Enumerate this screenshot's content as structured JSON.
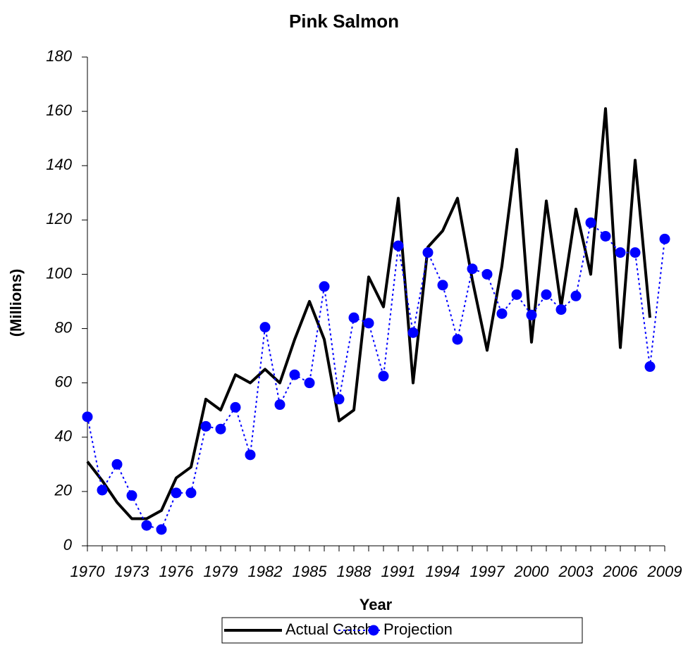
{
  "chart_data": {
    "type": "line",
    "title": "Pink Salmon",
    "xlabel": "Year",
    "ylabel": "(Millions)",
    "x": [
      1970,
      1971,
      1972,
      1973,
      1974,
      1975,
      1976,
      1977,
      1978,
      1979,
      1980,
      1981,
      1982,
      1983,
      1984,
      1985,
      1986,
      1987,
      1988,
      1989,
      1990,
      1991,
      1992,
      1993,
      1994,
      1995,
      1996,
      1997,
      1998,
      1999,
      2000,
      2001,
      2002,
      2003,
      2004,
      2005,
      2006,
      2007,
      2008,
      2009
    ],
    "series": [
      {
        "name": "Actual Catch",
        "color": "#000000",
        "values": [
          31,
          24,
          16,
          10,
          10,
          13,
          25,
          29,
          54,
          50,
          63,
          60,
          65,
          60,
          76,
          90,
          76,
          46,
          50,
          99,
          88,
          128,
          60,
          110,
          116,
          128,
          98,
          72,
          103,
          146,
          75,
          127,
          88,
          124,
          100,
          161,
          73,
          142,
          84,
          null
        ]
      },
      {
        "name": "Projection",
        "color": "#0000ff",
        "values": [
          47.5,
          20.5,
          30,
          18.5,
          7.5,
          6,
          19.5,
          19.5,
          44,
          43,
          51,
          33.5,
          80.5,
          52,
          63,
          60,
          95.5,
          54,
          84,
          82,
          62.5,
          110.5,
          78.5,
          108,
          96,
          76,
          102,
          100,
          85.5,
          92.5,
          85,
          92.5,
          87,
          92,
          119,
          114,
          108,
          108,
          66,
          113
        ]
      }
    ],
    "xlim": [
      1970,
      2009
    ],
    "xticks": [
      1970,
      1973,
      1976,
      1979,
      1982,
      1985,
      1988,
      1991,
      1994,
      1997,
      2000,
      2003,
      2006,
      2009
    ],
    "ylim": [
      0,
      180
    ],
    "yticks": [
      0,
      20,
      40,
      60,
      80,
      100,
      120,
      140,
      160,
      180
    ],
    "grid": false,
    "legend": "bottom"
  }
}
